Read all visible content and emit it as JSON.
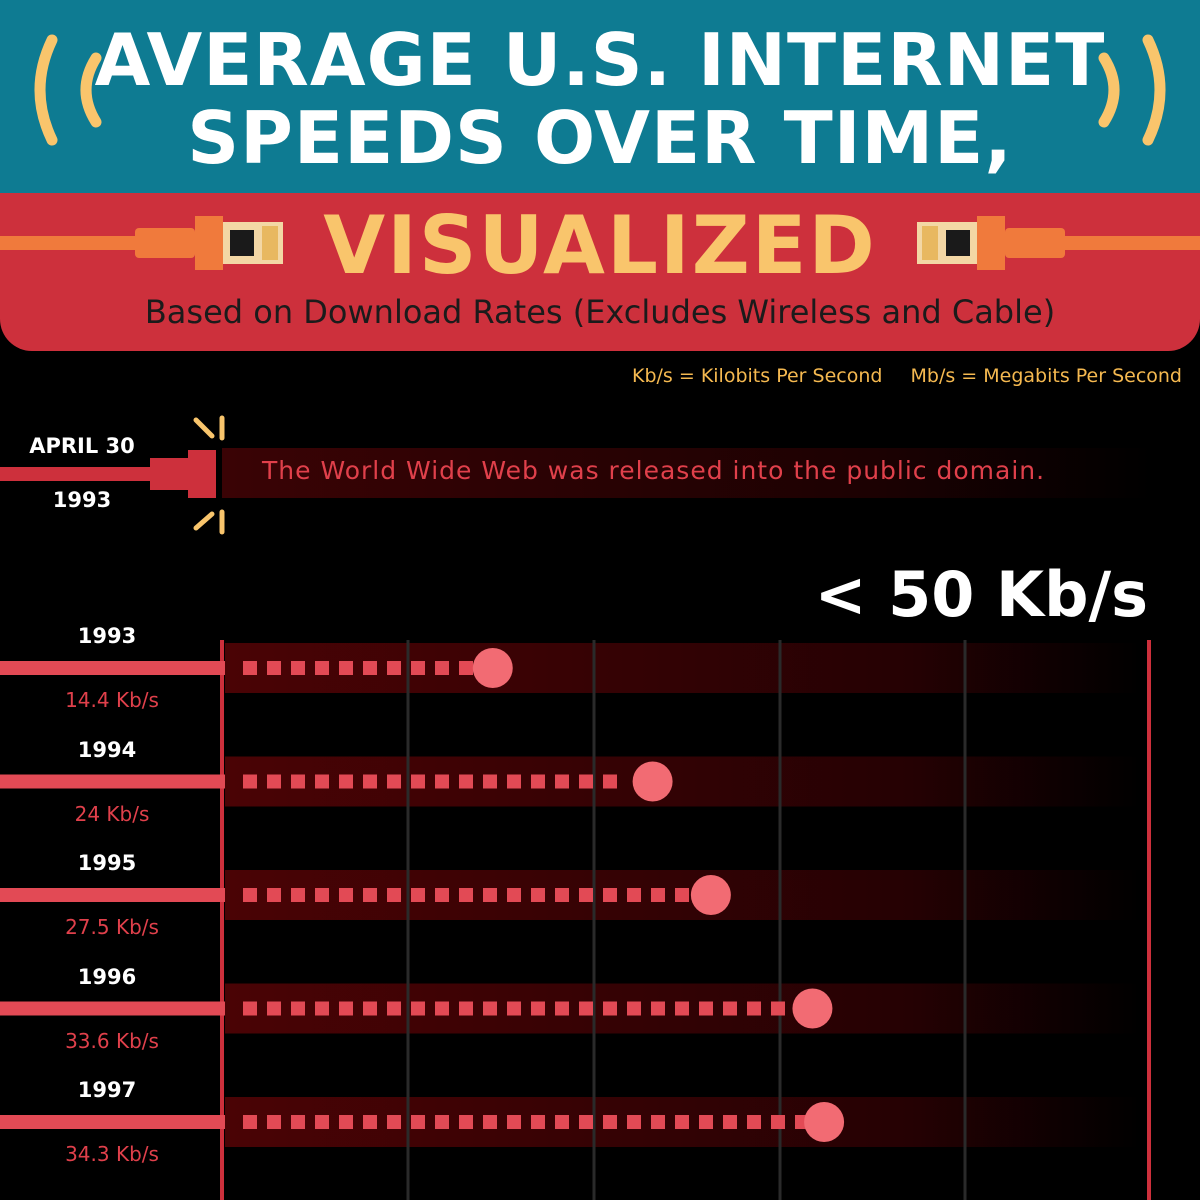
{
  "header": {
    "title_line1": "AVERAGE U.S. INTERNET",
    "title_line2": "SPEEDS OVER TIME,",
    "subtitle": "VISUALIZED",
    "description": "Based on Download Rates (Excludes Wireless and Cable)"
  },
  "legend": {
    "kb": "Kb/s = Kilobits Per Second",
    "mb": "Mb/s = Megabits Per Second"
  },
  "event": {
    "date": "APRIL 30",
    "year": "1993",
    "text": "The World Wide Web was released into the public domain."
  },
  "colors": {
    "teal": "#0e7b92",
    "red": "#cd303c",
    "yellow": "#f9c56c",
    "orange": "#f07a3c",
    "bar": "#e24a55",
    "dot": "#f26b73"
  },
  "chart_data": {
    "type": "bar",
    "orientation": "horizontal",
    "scale_label": "< 50 Kb/s",
    "xlim": [
      0,
      50
    ],
    "unit": "Kb/s",
    "categories": [
      "1993",
      "1994",
      "1995",
      "1996",
      "1997"
    ],
    "values": [
      14.4,
      24,
      27.5,
      33.6,
      34.3
    ],
    "value_labels": [
      "14.4 Kb/s",
      "24 Kb/s",
      "27.5 Kb/s",
      "33.6 Kb/s",
      "34.3 Kb/s"
    ]
  }
}
